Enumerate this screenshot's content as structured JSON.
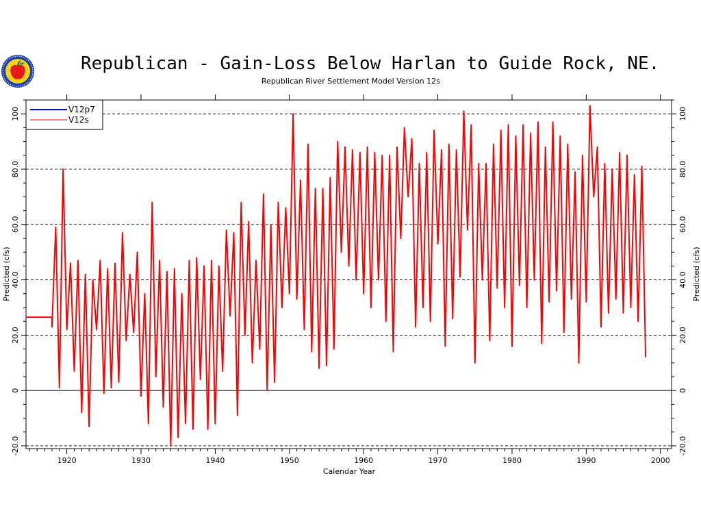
{
  "chart_data": {
    "type": "line",
    "title": "Republican - Gain-Loss Below Harlan to Guide Rock, NE.",
    "subtitle": "Republican River Settlement Model Version 12s",
    "xlabel": "Calendar Year",
    "ylabel": "Predicted (cfs)",
    "xlim": [
      1914.5,
      2001.5
    ],
    "ylim": [
      -21,
      105
    ],
    "x_ticks": [
      1920,
      1930,
      1940,
      1950,
      1960,
      1970,
      1980,
      1990,
      2000
    ],
    "x_tick_labels": [
      "1920",
      "1930",
      "1940",
      "1950",
      "1960",
      "1970",
      "1980",
      "1990",
      "2000"
    ],
    "y_ticks": [
      -20,
      0,
      20,
      40,
      60,
      80,
      100
    ],
    "y_tick_labels": [
      "-20.0",
      "0",
      "20.0",
      "40.0",
      "60.0",
      "80.0",
      "100"
    ],
    "grid": {
      "y_dashed": [
        -20,
        20,
        40,
        60,
        80,
        100
      ],
      "zero_line": 0
    },
    "legend": {
      "position": "top-left"
    },
    "series": [
      {
        "name": "V12p7",
        "color": "#0000ff",
        "x": [],
        "y": []
      },
      {
        "name": "V12s",
        "color": "#ff0000",
        "x_start": 1918.0,
        "x_step": 0.5,
        "pre_segment": {
          "x": [
            1914.5,
            1918.0
          ],
          "y": [
            26.5,
            26.5
          ]
        },
        "y": [
          23.0,
          59.0,
          1.0,
          80.0,
          22.0,
          46.0,
          7.0,
          47.0,
          -8.0,
          42.0,
          -13.0,
          40.0,
          22.0,
          47.0,
          -1.0,
          44.0,
          1.0,
          46.0,
          3.0,
          57.0,
          18.0,
          42.0,
          21.0,
          50.0,
          -2.0,
          35.0,
          -12.0,
          68.0,
          5.0,
          47.0,
          -6.0,
          43.0,
          -20.0,
          44.0,
          -17.0,
          35.0,
          -12.0,
          47.0,
          -14.0,
          48.0,
          4.0,
          45.0,
          -14.0,
          47.0,
          -12.0,
          45.0,
          7.0,
          58.0,
          27.0,
          57.0,
          -9.0,
          68.0,
          20.0,
          61.0,
          10.0,
          47.0,
          15.0,
          71.0,
          0.0,
          60.0,
          3.0,
          68.0,
          30.0,
          66.0,
          35.0,
          100.0,
          33.0,
          76.0,
          22.0,
          89.0,
          14.0,
          73.0,
          8.0,
          73.0,
          9.0,
          77.0,
          15.0,
          90.0,
          50.0,
          88.0,
          45.0,
          87.0,
          40.0,
          86.0,
          35.0,
          88.0,
          30.0,
          86.0,
          40.0,
          85.0,
          25.0,
          85.0,
          14.0,
          88.0,
          55.0,
          95.0,
          70.0,
          91.0,
          23.0,
          82.0,
          30.0,
          86.0,
          25.0,
          94.0,
          53.0,
          87.0,
          16.0,
          89.0,
          26.0,
          87.0,
          41.0,
          101.0,
          58.0,
          96.0,
          10.0,
          82.0,
          40.0,
          82.0,
          18.0,
          89.0,
          37.0,
          94.0,
          30.0,
          96.0,
          16.0,
          92.0,
          38.0,
          96.0,
          30.0,
          93.0,
          40.0,
          97.0,
          17.0,
          88.0,
          32.0,
          97.0,
          36.0,
          92.0,
          21.0,
          89.0,
          33.0,
          79.0,
          10.0,
          85.0,
          32.0,
          103.0,
          70.0,
          88.0,
          23.0,
          82.0,
          28.0,
          80.0,
          33.0,
          86.0,
          28.0,
          85.0,
          30.0,
          78.0,
          25.0,
          81.0,
          12.0
        ]
      }
    ]
  },
  "logo": {
    "name": "seal"
  }
}
